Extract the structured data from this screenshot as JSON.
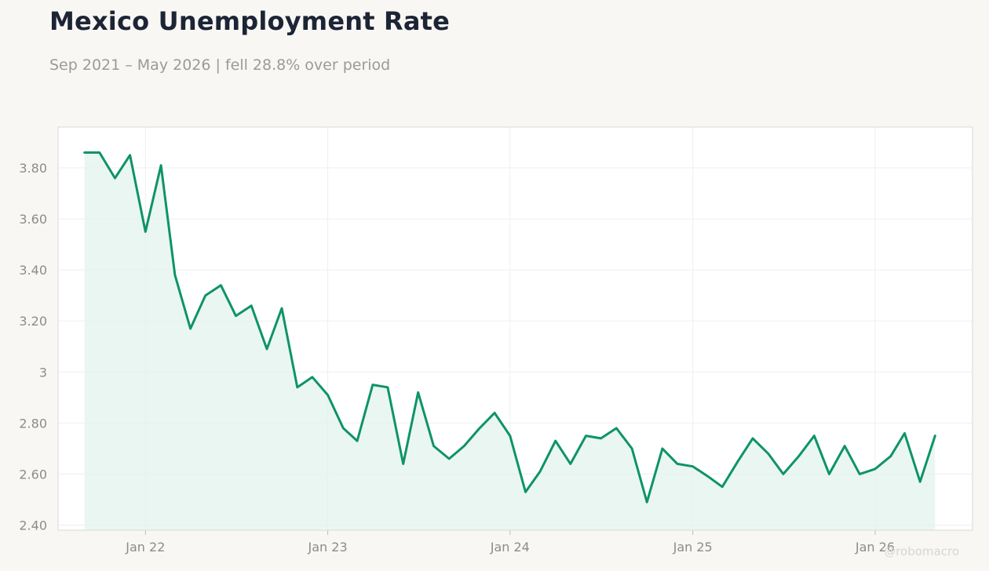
{
  "header": {
    "title": "Mexico Unemployment Rate",
    "subtitle": "Sep 2021 – May 2026 | fell 28.8% over period"
  },
  "watermark": "@robomacro",
  "colors": {
    "line": "#0e9466",
    "fill": "#e3f3ed",
    "plot_bg": "#ffffff",
    "grid": "#efefef",
    "axis_border": "#d9d9d9"
  },
  "chart_data": {
    "type": "area",
    "title": "Mexico Unemployment Rate",
    "subtitle": "Sep 2021 – May 2026 | fell 28.8% over period",
    "xlabel": "",
    "ylabel": "",
    "grid": true,
    "legend": "none",
    "ylim": [
      2.38,
      3.96
    ],
    "xlim": [
      "2021-07-10",
      "2026-07-15"
    ],
    "y_ticks": [
      {
        "value": 2.4,
        "label": "2.40"
      },
      {
        "value": 2.6,
        "label": "2.60"
      },
      {
        "value": 2.8,
        "label": "2.80"
      },
      {
        "value": 3.0,
        "label": "3"
      },
      {
        "value": 3.2,
        "label": "3.20"
      },
      {
        "value": 3.4,
        "label": "3.40"
      },
      {
        "value": 3.6,
        "label": "3.60"
      },
      {
        "value": 3.8,
        "label": "3.80"
      }
    ],
    "x_ticks": [
      {
        "date": "2022-01-01",
        "label": "Jan 22"
      },
      {
        "date": "2023-01-01",
        "label": "Jan 23"
      },
      {
        "date": "2024-01-01",
        "label": "Jan 24"
      },
      {
        "date": "2025-01-01",
        "label": "Jan 25"
      },
      {
        "date": "2026-01-01",
        "label": "Jan 26"
      }
    ],
    "series": [
      {
        "points": [
          [
            "2021-09-01",
            3.86
          ],
          [
            "2021-10-01",
            3.86
          ],
          [
            "2021-11-01",
            3.76
          ],
          [
            "2021-12-01",
            3.85
          ],
          [
            "2022-01-01",
            3.55
          ],
          [
            "2022-02-01",
            3.81
          ],
          [
            "2022-03-01",
            3.38
          ],
          [
            "2022-04-01",
            3.17
          ],
          [
            "2022-05-01",
            3.3
          ],
          [
            "2022-06-01",
            3.34
          ],
          [
            "2022-07-01",
            3.22
          ],
          [
            "2022-08-01",
            3.26
          ],
          [
            "2022-09-01",
            3.09
          ],
          [
            "2022-10-01",
            3.25
          ],
          [
            "2022-11-01",
            2.94
          ],
          [
            "2022-12-01",
            2.98
          ],
          [
            "2023-01-01",
            2.91
          ],
          [
            "2023-02-01",
            2.78
          ],
          [
            "2023-03-01",
            2.73
          ],
          [
            "2023-04-01",
            2.95
          ],
          [
            "2023-05-01",
            2.94
          ],
          [
            "2023-06-01",
            2.64
          ],
          [
            "2023-07-01",
            2.92
          ],
          [
            "2023-08-01",
            2.71
          ],
          [
            "2023-09-01",
            2.66
          ],
          [
            "2023-10-01",
            2.71
          ],
          [
            "2023-11-01",
            2.78
          ],
          [
            "2023-12-01",
            2.84
          ],
          [
            "2024-01-01",
            2.75
          ],
          [
            "2024-02-01",
            2.53
          ],
          [
            "2024-03-01",
            2.61
          ],
          [
            "2024-04-01",
            2.73
          ],
          [
            "2024-05-01",
            2.64
          ],
          [
            "2024-06-01",
            2.75
          ],
          [
            "2024-07-01",
            2.74
          ],
          [
            "2024-08-01",
            2.78
          ],
          [
            "2024-09-01",
            2.7
          ],
          [
            "2024-10-01",
            2.49
          ],
          [
            "2024-11-01",
            2.7
          ],
          [
            "2024-12-01",
            2.64
          ],
          [
            "2025-01-01",
            2.63
          ],
          [
            "2025-02-01",
            2.59
          ],
          [
            "2025-03-01",
            2.55
          ],
          [
            "2025-04-01",
            2.65
          ],
          [
            "2025-05-01",
            2.74
          ],
          [
            "2025-06-01",
            2.68
          ],
          [
            "2025-07-01",
            2.6
          ],
          [
            "2025-08-01",
            2.67
          ],
          [
            "2025-09-01",
            2.75
          ],
          [
            "2025-10-01",
            2.6
          ],
          [
            "2025-11-01",
            2.71
          ],
          [
            "2025-12-01",
            2.6
          ],
          [
            "2026-01-01",
            2.62
          ],
          [
            "2026-02-01",
            2.67
          ],
          [
            "2026-03-01",
            2.76
          ],
          [
            "2026-04-01",
            2.57
          ],
          [
            "2026-05-01",
            2.75
          ]
        ]
      }
    ]
  }
}
